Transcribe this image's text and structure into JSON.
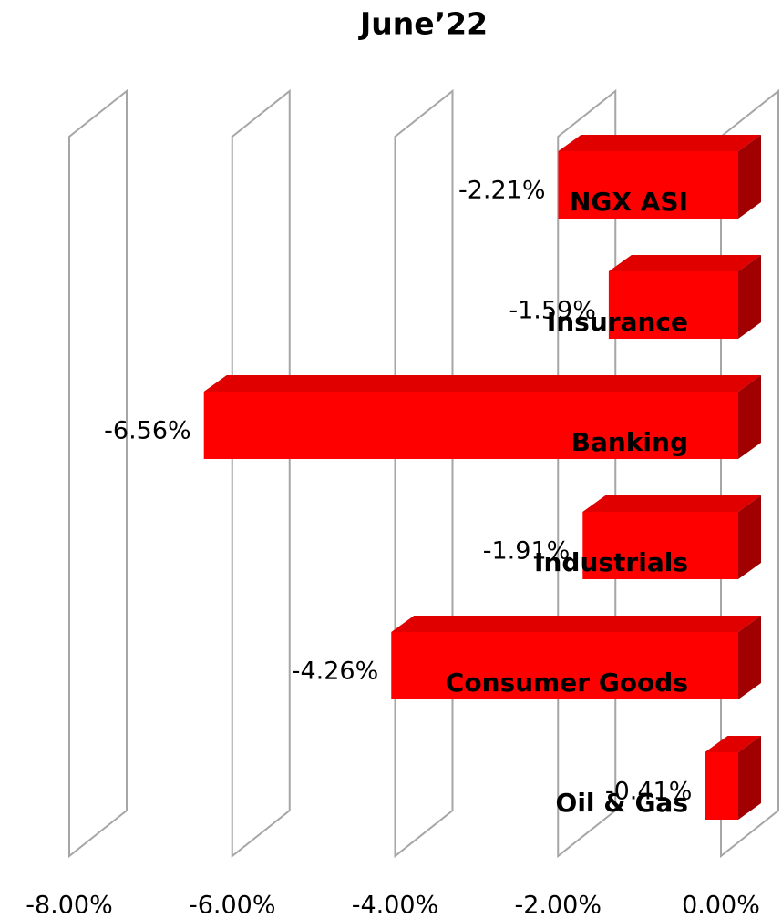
{
  "chart_data": {
    "type": "bar3d",
    "orientation": "horizontal",
    "title": "June’22",
    "categories": [
      "NGX ASI",
      "Insurance",
      "Banking",
      "Industrials",
      "Consumer Goods",
      "Oil & Gas"
    ],
    "values": [
      -2.21,
      -1.59,
      -6.56,
      -1.91,
      -4.26,
      -0.41
    ],
    "value_labels": [
      "-2.21%",
      "-1.59%",
      "-6.56%",
      "-1.91%",
      "-4.26%",
      "-0.41%"
    ],
    "color": "#ff0000",
    "xlim": [
      -8,
      0
    ],
    "xticks": [
      {
        "value": -8,
        "label": "-8.00%"
      },
      {
        "value": -6,
        "label": "-6.00%"
      },
      {
        "value": -4,
        "label": "-4.00%"
      },
      {
        "value": -2,
        "label": "-2.00%"
      },
      {
        "value": 0,
        "label": "0.00%"
      }
    ],
    "grid": true
  }
}
